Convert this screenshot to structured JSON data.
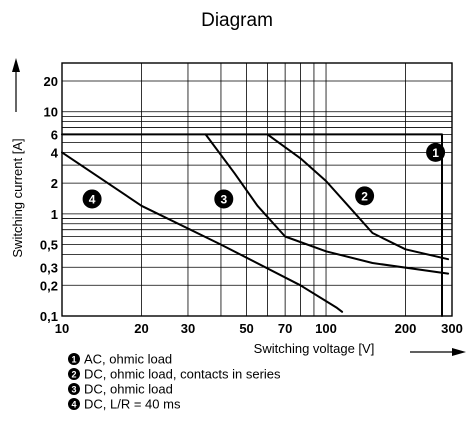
{
  "chart_data": {
    "type": "line",
    "title": "Diagram",
    "xlabel": "Switching voltage [V]",
    "ylabel": "Switching current [A]",
    "x_scale": "log",
    "y_scale": "log",
    "xlim": [
      10,
      300
    ],
    "ylim": [
      0.1,
      30
    ],
    "x_ticks": [
      {
        "value": 10,
        "label": "10"
      },
      {
        "value": 20,
        "label": "20"
      },
      {
        "value": 30,
        "label": "30"
      },
      {
        "value": 50,
        "label": "50"
      },
      {
        "value": 70,
        "label": "70"
      },
      {
        "value": 100,
        "label": "100"
      },
      {
        "value": 200,
        "label": "200"
      },
      {
        "value": 300,
        "label": "300"
      }
    ],
    "y_ticks": [
      {
        "value": 0.1,
        "label": "0,1"
      },
      {
        "value": 0.2,
        "label": "0,2"
      },
      {
        "value": 0.3,
        "label": "0,3"
      },
      {
        "value": 0.5,
        "label": "0,5"
      },
      {
        "value": 1,
        "label": "1"
      },
      {
        "value": 2,
        "label": "2"
      },
      {
        "value": 4,
        "label": "4"
      },
      {
        "value": 6,
        "label": "6"
      },
      {
        "value": 10,
        "label": "10"
      },
      {
        "value": 20,
        "label": "20"
      }
    ],
    "grid": true,
    "series": [
      {
        "label": "1",
        "x": [
          10,
          275,
          275
        ],
        "y": [
          6,
          6,
          0.1
        ]
      },
      {
        "label": "2",
        "x": [
          60,
          80,
          100,
          125,
          150,
          200,
          290
        ],
        "y": [
          6,
          3.5,
          2.1,
          1.1,
          0.65,
          0.45,
          0.36
        ]
      },
      {
        "label": "3",
        "x": [
          35,
          45,
          55,
          70,
          100,
          150,
          290
        ],
        "y": [
          6,
          2.5,
          1.2,
          0.6,
          0.43,
          0.33,
          0.26
        ]
      },
      {
        "label": "4",
        "x": [
          10,
          20,
          40,
          80,
          110,
          115
        ],
        "y": [
          4,
          1.2,
          0.5,
          0.2,
          0.12,
          0.11
        ]
      }
    ],
    "legend": [
      {
        "label": "1",
        "text": "AC, ohmic load"
      },
      {
        "label": "2",
        "text": "DC, ohmic load, contacts in series"
      },
      {
        "label": "3",
        "text": "DC, ohmic load"
      },
      {
        "label": "4",
        "text": "DC, L/R = 40 ms"
      }
    ]
  },
  "badges_on_chart": [
    {
      "label": "1",
      "x": 260,
      "y": 4
    },
    {
      "label": "2",
      "x": 140,
      "y": 1.5
    },
    {
      "label": "3",
      "x": 41,
      "y": 1.4
    },
    {
      "label": "4",
      "x": 13,
      "y": 1.4
    }
  ]
}
